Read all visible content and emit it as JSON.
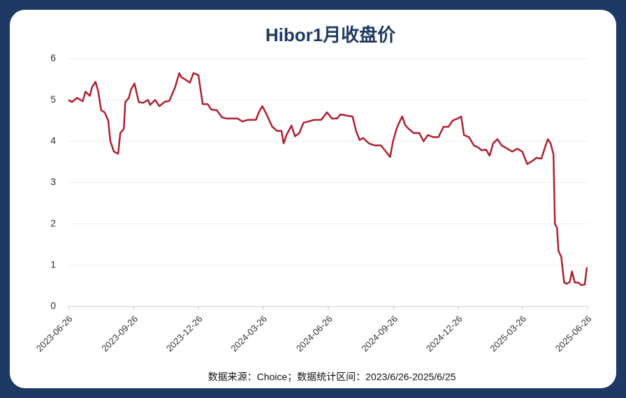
{
  "chart_data": {
    "type": "line",
    "title": "Hibor1月收盘价",
    "source": "数据来源：Choice；数据统计区间：2023/6/26-2025/6/25",
    "x": [
      "2023-06-26",
      "2023-07-01",
      "2023-07-08",
      "2023-07-16",
      "2023-07-20",
      "2023-07-26",
      "2023-07-29",
      "2023-08-03",
      "2023-08-07",
      "2023-08-11",
      "2023-08-16",
      "2023-08-21",
      "2023-08-24",
      "2023-08-29",
      "2023-09-04",
      "2023-09-07",
      "2023-09-12",
      "2023-09-14",
      "2023-09-19",
      "2023-09-22",
      "2023-09-27",
      "2023-10-03",
      "2023-10-09",
      "2023-10-16",
      "2023-10-19",
      "2023-10-26",
      "2023-11-01",
      "2023-11-08",
      "2023-11-15",
      "2023-11-23",
      "2023-11-29",
      "2023-12-02",
      "2023-12-07",
      "2023-12-14",
      "2023-12-19",
      "2023-12-26",
      "2024-01-01",
      "2024-01-08",
      "2024-01-13",
      "2024-01-21",
      "2024-01-28",
      "2024-02-04",
      "2024-02-12",
      "2024-02-19",
      "2024-02-26",
      "2024-03-05",
      "2024-03-16",
      "2024-03-20",
      "2024-03-25",
      "2024-03-31",
      "2024-04-08",
      "2024-04-15",
      "2024-04-21",
      "2024-04-24",
      "2024-04-28",
      "2024-05-05",
      "2024-05-10",
      "2024-05-16",
      "2024-05-22",
      "2024-05-29",
      "2024-06-06",
      "2024-06-16",
      "2024-06-24",
      "2024-07-01",
      "2024-07-08",
      "2024-07-13",
      "2024-07-22",
      "2024-07-30",
      "2024-08-04",
      "2024-08-09",
      "2024-08-14",
      "2024-08-22",
      "2024-08-30",
      "2024-09-08",
      "2024-09-15",
      "2024-09-21",
      "2024-09-25",
      "2024-09-30",
      "2024-10-05",
      "2024-10-08",
      "2024-10-12",
      "2024-10-17",
      "2024-10-24",
      "2024-11-01",
      "2024-11-07",
      "2024-11-13",
      "2024-11-21",
      "2024-11-28",
      "2024-12-05",
      "2024-12-12",
      "2024-12-18",
      "2024-12-25",
      "2024-12-30",
      "2025-01-03",
      "2025-01-10",
      "2025-01-17",
      "2025-01-23",
      "2025-01-28",
      "2025-02-03",
      "2025-02-08",
      "2025-02-13",
      "2025-02-19",
      "2025-02-25",
      "2025-03-05",
      "2025-03-12",
      "2025-03-19",
      "2025-03-26",
      "2025-04-02",
      "2025-04-09",
      "2025-04-15",
      "2025-04-22",
      "2025-04-27",
      "2025-05-01",
      "2025-05-05",
      "2025-05-09",
      "2025-05-11",
      "2025-05-14",
      "2025-05-16",
      "2025-05-20",
      "2025-05-24",
      "2025-05-28",
      "2025-06-01",
      "2025-06-04",
      "2025-06-08",
      "2025-06-13",
      "2025-06-17",
      "2025-06-22",
      "2025-06-25"
    ],
    "series": [
      {
        "color": "#b0202e",
        "values": [
          5.0,
          4.95,
          5.05,
          4.97,
          5.2,
          5.1,
          5.3,
          5.44,
          5.2,
          4.75,
          4.7,
          4.5,
          4.0,
          3.75,
          3.7,
          4.2,
          4.3,
          4.95,
          5.05,
          5.25,
          5.4,
          4.95,
          4.93,
          5.0,
          4.88,
          5.0,
          4.85,
          4.95,
          4.98,
          5.3,
          5.65,
          5.55,
          5.5,
          5.42,
          5.65,
          5.6,
          4.9,
          4.9,
          4.77,
          4.75,
          4.58,
          4.55,
          4.55,
          4.55,
          4.48,
          4.52,
          4.52,
          4.7,
          4.85,
          4.65,
          4.35,
          4.25,
          4.25,
          3.95,
          4.15,
          4.38,
          4.12,
          4.2,
          4.45,
          4.48,
          4.52,
          4.52,
          4.7,
          4.55,
          4.55,
          4.65,
          4.62,
          4.6,
          4.25,
          4.03,
          4.08,
          3.95,
          3.9,
          3.9,
          3.75,
          3.62,
          4.0,
          4.3,
          4.5,
          4.6,
          4.4,
          4.3,
          4.2,
          4.2,
          4.0,
          4.15,
          4.1,
          4.1,
          4.35,
          4.35,
          4.5,
          4.55,
          4.6,
          4.15,
          4.1,
          3.9,
          3.85,
          3.78,
          3.8,
          3.65,
          3.95,
          4.05,
          3.9,
          3.82,
          3.75,
          3.82,
          3.75,
          3.45,
          3.52,
          3.6,
          3.58,
          3.85,
          4.05,
          3.95,
          3.68,
          2.0,
          1.9,
          1.35,
          1.2,
          0.58,
          0.55,
          0.6,
          0.85,
          0.58,
          0.58,
          0.52,
          0.53,
          0.95
        ]
      }
    ],
    "xlim": [
      "2023-06-26",
      "2025-06-26"
    ],
    "xticks": [
      "2023-06-26",
      "2023-09-26",
      "2023-12-26",
      "2024-03-26",
      "2024-06-26",
      "2024-09-26",
      "2024-12-26",
      "2025-03-26",
      "2025-06-26"
    ],
    "ylim": [
      0,
      6
    ],
    "yticks": [
      0,
      1,
      2,
      3,
      4,
      5,
      6
    ],
    "grid": true
  }
}
